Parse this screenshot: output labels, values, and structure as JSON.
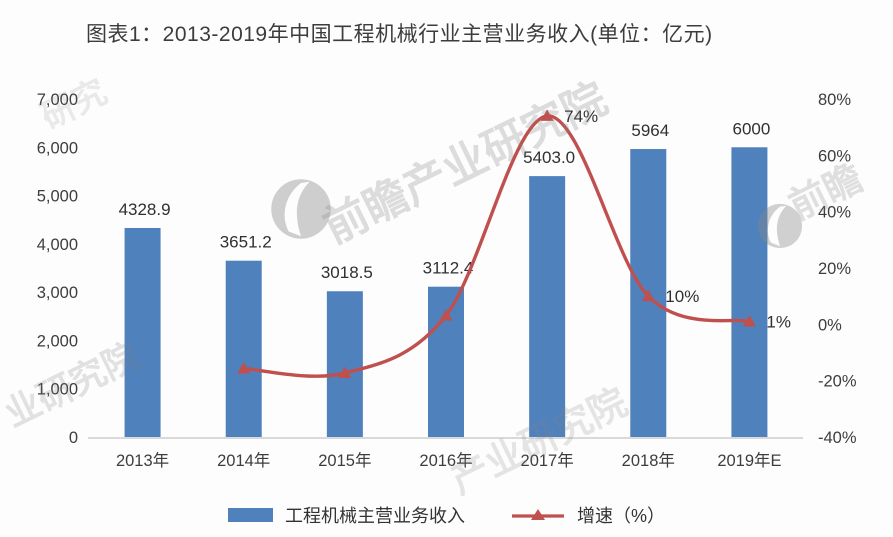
{
  "chart_data": {
    "type": "combo",
    "title": "图表1：2013-2019年中国工程机械行业主营业务收入(单位：亿元)",
    "categories": [
      "2013年",
      "2014年",
      "2015年",
      "2016年",
      "2017年",
      "2018年",
      "2019年E"
    ],
    "series": [
      {
        "name": "工程机械主营业务收入",
        "type": "bar",
        "axis": "left",
        "color": "#4f81bd",
        "values": [
          4328.9,
          3651.2,
          3018.5,
          3112.4,
          5403.0,
          5964,
          6000
        ],
        "labels": [
          "4328.9",
          "3651.2",
          "3018.5",
          "3112.4",
          "5403.0",
          "5964",
          "6000"
        ]
      },
      {
        "name": "增速（%）",
        "type": "line",
        "axis": "right",
        "color": "#c0504d",
        "values": [
          null,
          -15.7,
          -17.3,
          3.1,
          74,
          10,
          1
        ],
        "labels": [
          "",
          "",
          "",
          "",
          "74%",
          "10%",
          "1%"
        ]
      }
    ],
    "y_left": {
      "min": 0,
      "max": 7000,
      "ticks": [
        "7,000",
        "6,000",
        "5,000",
        "4,000",
        "3,000",
        "2,000",
        "1,000",
        "0"
      ]
    },
    "y_right": {
      "min": -40,
      "max": 80,
      "ticks": [
        "80%",
        "60%",
        "40%",
        "20%",
        "0%",
        "-20%",
        "-40%"
      ]
    },
    "grid": false,
    "legend_position": "bottom"
  },
  "watermark": {
    "text": "前瞻产业研究院",
    "short_text": "前瞻",
    "partial_topleft": "研究",
    "partial_botleft": "业研究院",
    "partial_botcenter": "产业研究院"
  }
}
